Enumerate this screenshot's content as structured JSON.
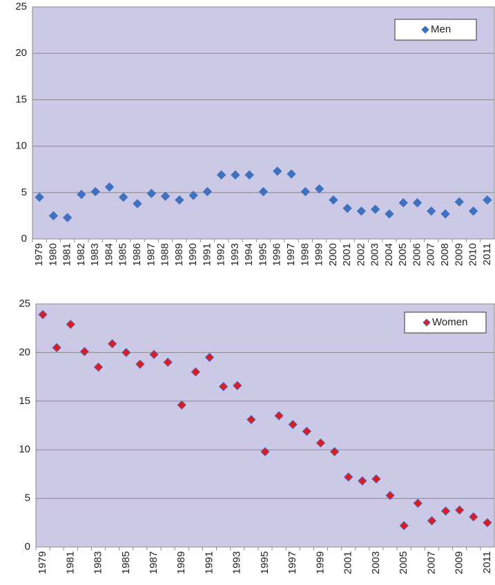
{
  "chart_data": [
    {
      "type": "scatter",
      "categories": [
        "1979",
        "1980",
        "1981",
        "1982",
        "1983",
        "1984",
        "1985",
        "1986",
        "1987",
        "1988",
        "1989",
        "1990",
        "1991",
        "1992",
        "1993",
        "1994",
        "1995",
        "1996",
        "1997",
        "1998",
        "1999",
        "2000",
        "2001",
        "2002",
        "2003",
        "2004",
        "2005",
        "2006",
        "2007",
        "2008",
        "2009",
        "2010",
        "2011"
      ],
      "series": [
        {
          "name": "Men",
          "color": "#4070c0",
          "stroke": "#4070c0",
          "values": [
            4.5,
            2.5,
            2.3,
            4.8,
            5.1,
            5.6,
            4.5,
            3.8,
            4.9,
            4.6,
            4.2,
            4.7,
            5.1,
            6.9,
            6.9,
            6.9,
            5.1,
            7.3,
            7.0,
            5.1,
            5.4,
            4.2,
            3.3,
            3.0,
            3.2,
            2.7,
            3.9,
            3.9,
            3.0,
            2.7,
            4.0,
            3.0,
            4.2
          ]
        }
      ],
      "ylim": [
        0,
        25
      ],
      "yticks": [
        0,
        5,
        10,
        15,
        20,
        25
      ],
      "grid": true,
      "legend": "top-right",
      "background": "#ccc9e6"
    },
    {
      "type": "scatter",
      "categories": [
        "1979",
        null,
        "1981",
        null,
        "1983",
        null,
        "1985",
        null,
        "1987",
        null,
        "1989",
        null,
        "1991",
        null,
        "1993",
        null,
        "1995",
        null,
        "1997",
        null,
        "1999",
        null,
        "2001",
        null,
        "2003",
        null,
        "2005",
        null,
        "2007",
        null,
        "2009",
        null,
        "2011"
      ],
      "series": [
        {
          "name": "Women",
          "color": "#e3191c",
          "stroke": "#4a6bbf",
          "values": [
            23.9,
            20.5,
            22.9,
            20.1,
            18.5,
            20.9,
            20.0,
            18.8,
            19.8,
            19.0,
            14.6,
            18.0,
            19.5,
            16.5,
            16.6,
            13.1,
            9.8,
            13.5,
            12.6,
            11.9,
            10.7,
            9.8,
            7.2,
            6.8,
            7.0,
            5.3,
            2.2,
            4.5,
            2.7,
            3.7,
            3.8,
            3.1,
            2.5
          ]
        }
      ],
      "ylim": [
        0,
        25
      ],
      "yticks": [
        0,
        5,
        10,
        15,
        20,
        25
      ],
      "grid": true,
      "legend": "top-right",
      "background": "#ccc9e6"
    }
  ]
}
